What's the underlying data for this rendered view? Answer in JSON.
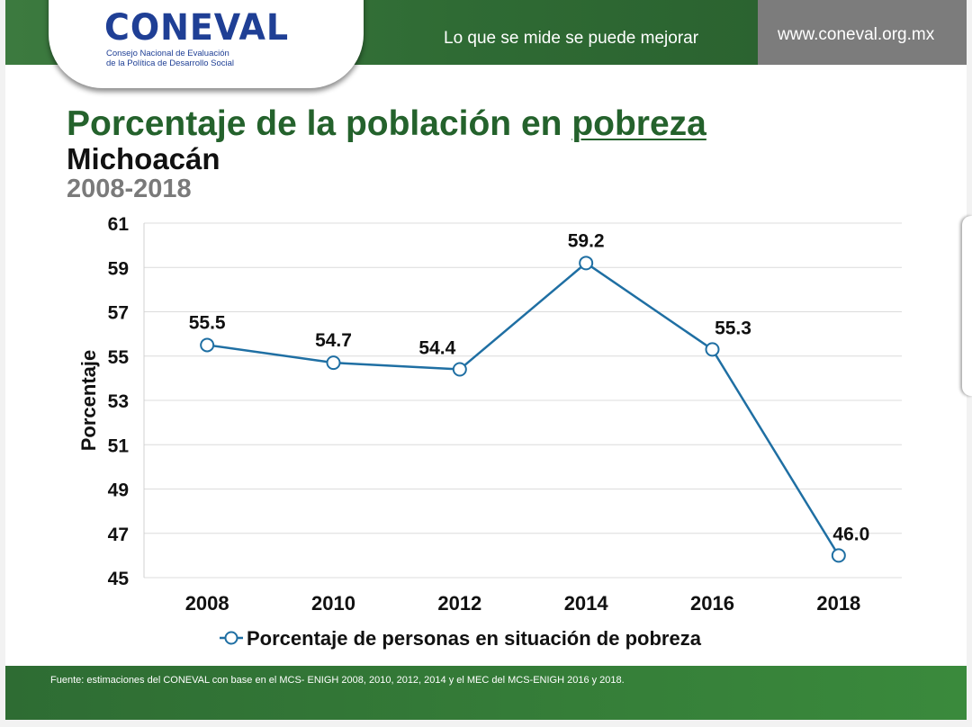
{
  "header": {
    "logo_text": "CONEVAL",
    "logo_subtitle_1": "Consejo Nacional de Evaluación",
    "logo_subtitle_2": "de la Política de Desarrollo Social",
    "tagline": "Lo que se mide se puede mejorar",
    "url": "www.coneval.org.mx"
  },
  "titles": {
    "title_main": "Porcentaje de la población en ",
    "title_underlined": "pobreza",
    "state": "Michoacán",
    "period": "2008-2018"
  },
  "footer": {
    "source": "Fuente: estimaciones del CONEVAL con base en el MCS- ENIGH 2008, 2010, 2012, 2014 y el MEC del MCS-ENIGH 2016 y 2018."
  },
  "colors": {
    "brand_green": "#2f6b34",
    "line_blue": "#1f6fa3",
    "logo_blue": "#1f3f95"
  },
  "chart_data": {
    "type": "line",
    "categories": [
      "2008",
      "2010",
      "2012",
      "2014",
      "2016",
      "2018"
    ],
    "series": [
      {
        "name": "Porcentaje de personas en situación de pobreza",
        "values": [
          55.5,
          54.7,
          54.4,
          59.2,
          55.3,
          46.0
        ],
        "labels": [
          "55.5",
          "54.7",
          "54.4",
          "59.2",
          "55.3",
          "46.0"
        ]
      }
    ],
    "ylabel": "Porcentaje",
    "ylim": [
      45,
      61
    ],
    "yticks": [
      61,
      59,
      57,
      55,
      53,
      51,
      49,
      47,
      45
    ],
    "grid": true,
    "legend": "bottom"
  }
}
